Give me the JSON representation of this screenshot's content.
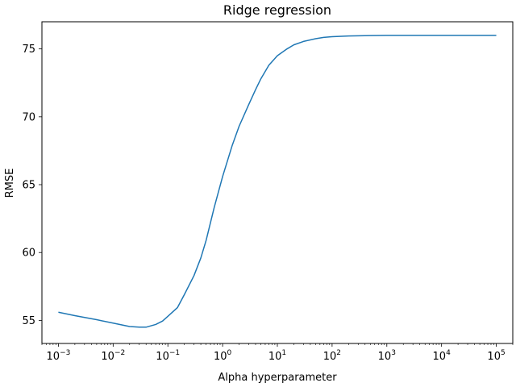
{
  "chart_data": {
    "type": "line",
    "title": "Ridge regression",
    "xlabel": "Alpha hyperparameter",
    "ylabel": "RMSE",
    "x_scale": "log",
    "xlim": [
      0.0005,
      200000
    ],
    "ylim": [
      53.3,
      77.0
    ],
    "x_ticks": [
      {
        "base": "10",
        "exp": "−3",
        "value": 0.001
      },
      {
        "base": "10",
        "exp": "−2",
        "value": 0.01
      },
      {
        "base": "10",
        "exp": "−1",
        "value": 0.1
      },
      {
        "base": "10",
        "exp": "0",
        "value": 1
      },
      {
        "base": "10",
        "exp": "1",
        "value": 10
      },
      {
        "base": "10",
        "exp": "2",
        "value": 100
      },
      {
        "base": "10",
        "exp": "3",
        "value": 1000
      },
      {
        "base": "10",
        "exp": "4",
        "value": 10000
      },
      {
        "base": "10",
        "exp": "5",
        "value": 100000
      }
    ],
    "y_ticks": [
      55,
      60,
      65,
      70,
      75
    ],
    "grid": false,
    "line_color": "#1f77b4",
    "series": [
      {
        "name": "",
        "x": [
          0.001,
          0.002,
          0.005,
          0.01,
          0.02,
          0.03,
          0.04,
          0.06,
          0.08,
          0.1,
          0.15,
          0.2,
          0.3,
          0.4,
          0.5,
          0.7,
          1,
          1.5,
          2,
          3,
          4,
          5,
          7,
          10,
          15,
          20,
          30,
          50,
          70,
          100,
          200,
          500,
          1000,
          10000,
          100000
        ],
        "y": [
          55.6,
          55.35,
          55.05,
          54.8,
          54.55,
          54.5,
          54.5,
          54.7,
          54.95,
          55.3,
          55.95,
          56.9,
          58.3,
          59.6,
          60.9,
          63.3,
          65.6,
          67.9,
          69.3,
          70.9,
          72.0,
          72.8,
          73.8,
          74.5,
          75.0,
          75.3,
          75.55,
          75.75,
          75.85,
          75.9,
          75.95,
          75.98,
          76.0,
          76.0,
          76.0
        ]
      }
    ]
  }
}
